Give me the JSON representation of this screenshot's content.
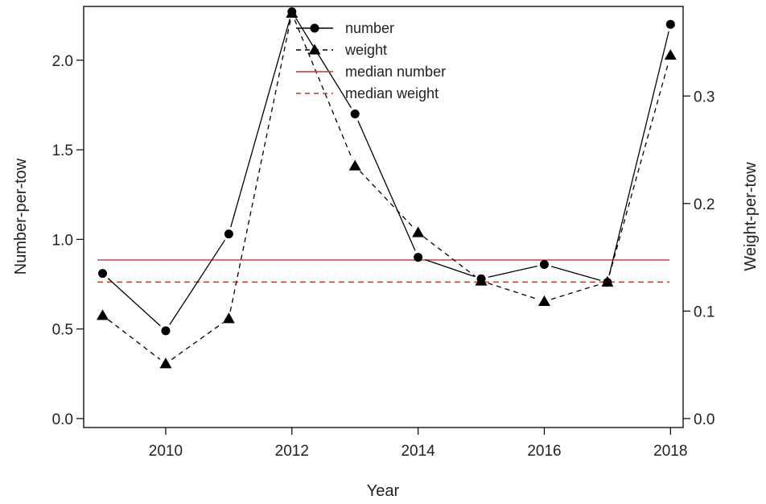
{
  "chart_data": {
    "type": "line",
    "xlabel": "Year",
    "ylabel": "Number-per-tow",
    "y2label": "Weight-per-tow",
    "x": [
      2009,
      2010,
      2011,
      2012,
      2013,
      2014,
      2015,
      2016,
      2017,
      2018
    ],
    "xlim": [
      2008.7,
      2018.2
    ],
    "ylim": [
      -0.05,
      2.3
    ],
    "y2lim": [
      -0.0083,
      0.3833
    ],
    "x_ticks": [
      "2010",
      "2012",
      "2014",
      "2016",
      "2018"
    ],
    "y_ticks": [
      "0.0",
      "0.5",
      "1.0",
      "1.5",
      "2.0"
    ],
    "y2_ticks": [
      "0.0",
      "0.1",
      "0.2",
      "0.3"
    ],
    "series": [
      {
        "name": "number",
        "axis": "left",
        "marker": "circle",
        "line": "solid",
        "color": "#000000",
        "values": [
          0.81,
          0.49,
          1.03,
          2.27,
          1.7,
          0.9,
          0.78,
          0.86,
          0.76,
          2.2
        ]
      },
      {
        "name": "weight",
        "axis": "right",
        "marker": "triangle",
        "line": "dashed",
        "color": "#000000",
        "values": [
          0.096,
          0.051,
          0.093,
          0.377,
          0.235,
          0.173,
          0.128,
          0.109,
          0.127,
          0.338
        ]
      }
    ],
    "reference_lines": [
      {
        "name": "median number",
        "axis": "left",
        "value": 0.885,
        "line": "solid",
        "color": "#c0392b"
      },
      {
        "name": "median weight",
        "axis": "right",
        "value": 0.127,
        "line": "dashed",
        "color": "#c0392b"
      }
    ],
    "legend": {
      "placement": "top-center",
      "entries": [
        "number",
        "weight",
        "median number",
        "median weight"
      ]
    },
    "grid": false
  }
}
